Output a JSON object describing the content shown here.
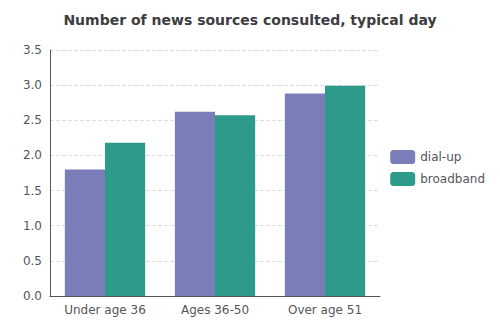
{
  "chart_data": {
    "type": "bar",
    "title": "Number of news sources consulted, typical day",
    "categories": [
      "Under age 36",
      "Ages 36-50",
      "Over age 51"
    ],
    "series": [
      {
        "name": "dial-up",
        "color": "#7b7db8",
        "values": [
          1.8,
          2.62,
          2.88
        ]
      },
      {
        "name": "broadband",
        "color": "#2d9b8a",
        "values": [
          2.18,
          2.57,
          2.99
        ]
      }
    ],
    "ylim": [
      0,
      3.5
    ],
    "yticks": [
      {
        "value": 0,
        "label": "0.0"
      },
      0.5,
      {
        "value": 1,
        "label": "1.0"
      },
      1.5,
      {
        "value": 2,
        "label": "2.0"
      },
      2.5,
      {
        "value": 3,
        "label": "3.0"
      },
      3.5
    ],
    "grid": true,
    "legend": "right"
  }
}
